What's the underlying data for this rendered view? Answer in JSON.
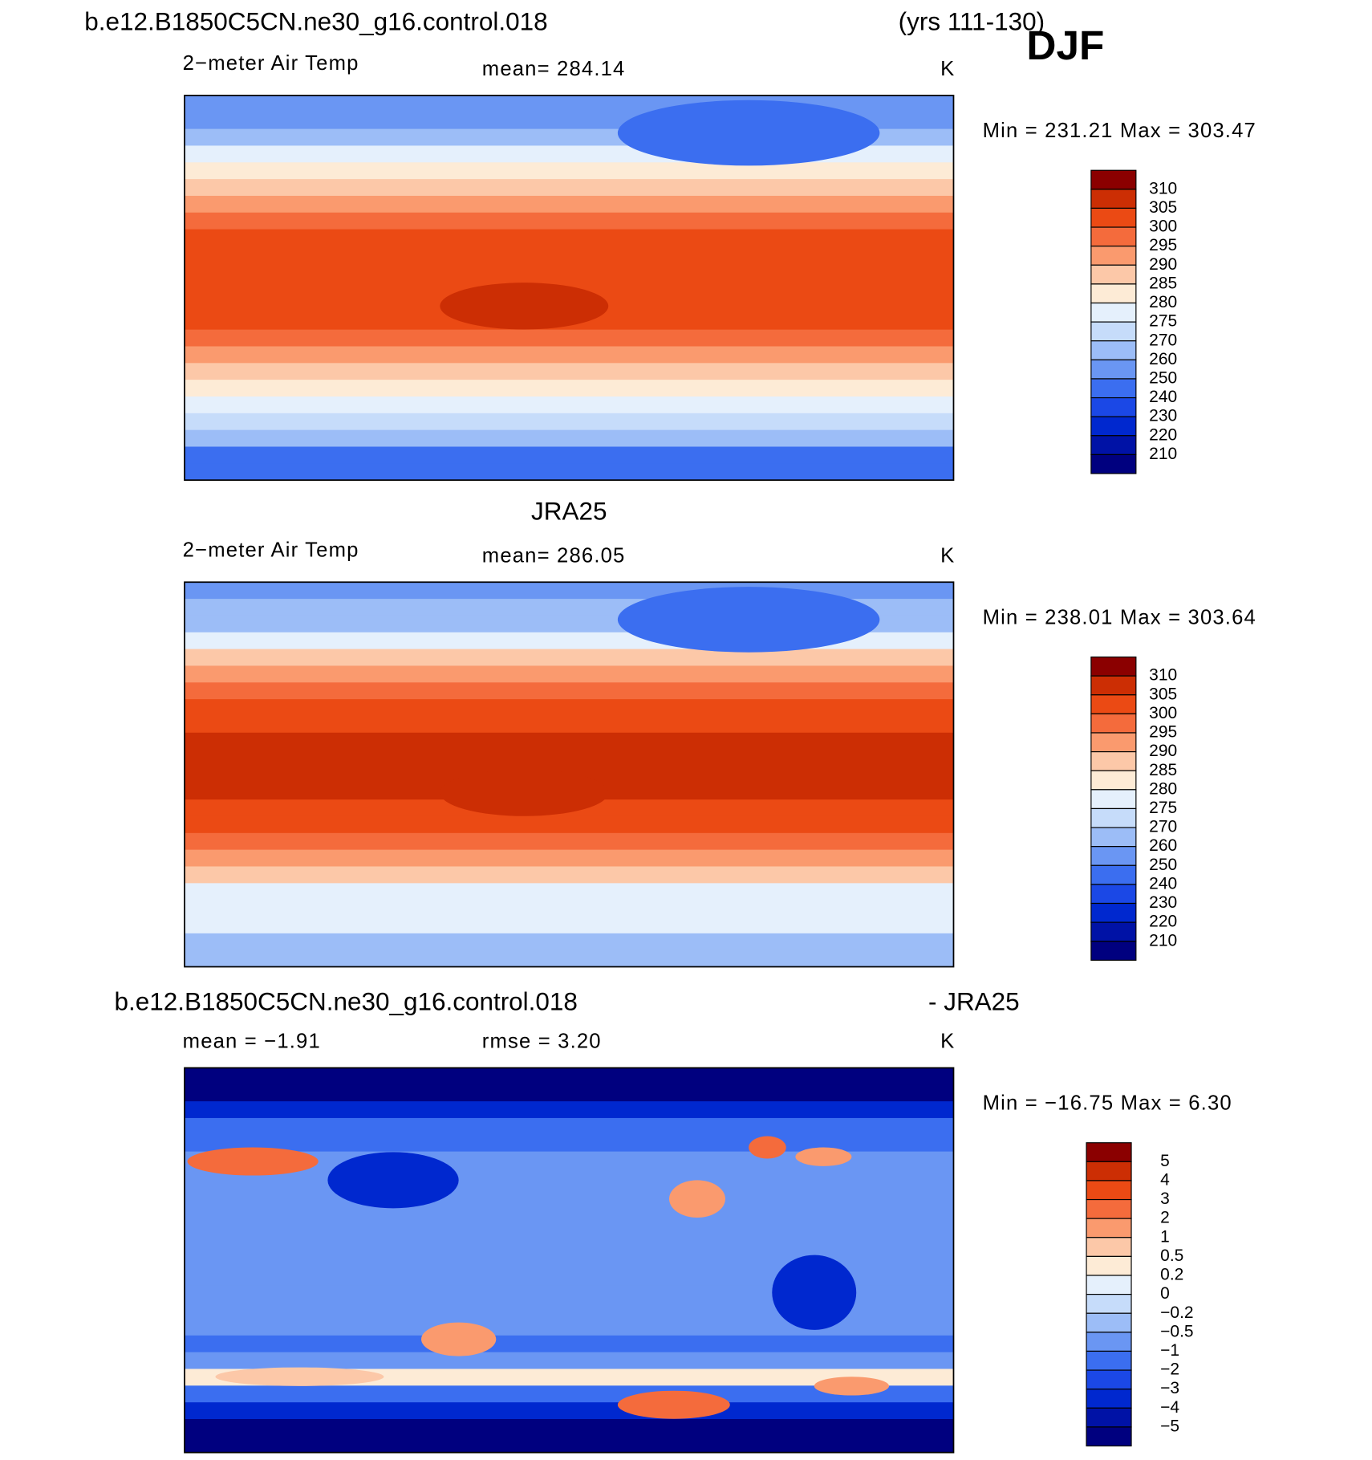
{
  "header": {
    "case": "b.e12.B1850C5CN.ne30_g16.control.018",
    "years": "(yrs 111-130)",
    "season": "DJF"
  },
  "panels": [
    {
      "variable": "2−meter Air Temp",
      "stat": "mean= 284.14",
      "units": "K",
      "min_max": "Min = 231.21 Max = 303.47",
      "colorbar": [
        "310",
        "305",
        "300",
        "295",
        "290",
        "285",
        "280",
        "275",
        "270",
        "260",
        "250",
        "240",
        "230",
        "220",
        "210"
      ]
    },
    {
      "title": "JRA25",
      "variable": "2−meter Air Temp",
      "stat": "mean= 286.05",
      "units": "K",
      "min_max": "Min = 238.01 Max = 303.64",
      "colorbar": [
        "310",
        "305",
        "300",
        "295",
        "290",
        "285",
        "280",
        "275",
        "270",
        "260",
        "250",
        "240",
        "230",
        "220",
        "210"
      ]
    },
    {
      "title_left": "b.e12.B1850C5CN.ne30_g16.control.018",
      "title_right": "- JRA25",
      "stat": "mean =  −1.91",
      "stat2": "rmse =    3.20",
      "units": "K",
      "min_max": "Min = −16.75 Max =    6.30",
      "colorbar": [
        "5",
        "4",
        "3",
        "2",
        "1",
        "0.5",
        "0.2",
        "0",
        "−0.2",
        "−0.5",
        "−1",
        "−2",
        "−3",
        "−4",
        "−5"
      ]
    }
  ]
}
